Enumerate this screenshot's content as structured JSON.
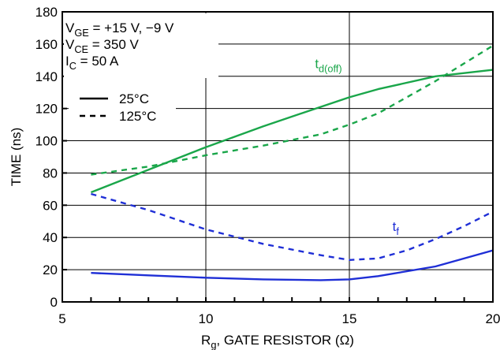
{
  "chart_data": {
    "type": "line",
    "xlabel": {
      "main": "R",
      "sub": "g",
      "rest": ", GATE RESISTOR (Ω)"
    },
    "ylabel": "TIME (ns)",
    "xlim": [
      5,
      20
    ],
    "ylim": [
      0,
      180
    ],
    "xticks": [
      5,
      10,
      15,
      20
    ],
    "yticks": [
      0,
      20,
      40,
      60,
      80,
      100,
      120,
      140,
      160,
      180
    ],
    "grid": true,
    "conditions": [
      {
        "main": "V",
        "sub": "GE",
        "rest": " = +15 V, −9 V"
      },
      {
        "main": "V",
        "sub": "CE",
        "rest": " = 350 V"
      },
      {
        "main": "I",
        "sub": "C",
        "rest": " = 50 A"
      }
    ],
    "legend": [
      {
        "label": "25°C",
        "dash": "solid"
      },
      {
        "label": "125°C",
        "dash": "dashed"
      }
    ],
    "annotations": [
      {
        "main": "t",
        "sub": "d(off)",
        "near_x": 13.8,
        "near_y": 145,
        "color": "#1aa64a"
      },
      {
        "main": "t",
        "sub": "f",
        "near_x": 16.5,
        "near_y": 44,
        "color": "#1f2fd6"
      }
    ],
    "series": [
      {
        "parameter": "td(off)",
        "temperature": "25°C",
        "color": "#1aa64a",
        "dash": "solid",
        "x": [
          6,
          8,
          10,
          12,
          14,
          15,
          16,
          18,
          20
        ],
        "y": [
          68,
          82,
          96,
          109,
          121,
          127,
          132,
          140,
          144
        ]
      },
      {
        "parameter": "td(off)",
        "temperature": "125°C",
        "color": "#1aa64a",
        "dash": "dashed",
        "x": [
          6,
          8,
          10,
          12,
          14,
          15,
          16,
          17,
          18,
          19,
          20
        ],
        "y": [
          79,
          84,
          91,
          97,
          104,
          110,
          117,
          127,
          137,
          148,
          159
        ]
      },
      {
        "parameter": "tf",
        "temperature": "25°C",
        "color": "#1f2fd6",
        "dash": "solid",
        "x": [
          6,
          8,
          10,
          12,
          14,
          15,
          16,
          18,
          20
        ],
        "y": [
          18,
          16.5,
          15,
          14,
          13.5,
          14,
          16,
          22,
          32
        ]
      },
      {
        "parameter": "tf",
        "temperature": "125°C",
        "color": "#1f2fd6",
        "dash": "dashed",
        "x": [
          6,
          8,
          10,
          12,
          14,
          15,
          16,
          17,
          18,
          19,
          20
        ],
        "y": [
          67,
          57,
          45,
          36,
          29,
          26,
          27,
          32,
          39,
          47,
          56
        ]
      }
    ]
  }
}
